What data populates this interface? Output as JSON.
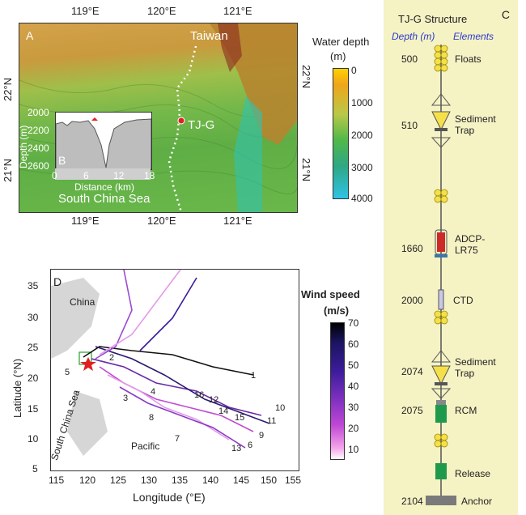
{
  "panel_a": {
    "label": "A",
    "top_ticks": [
      "119°E",
      "120°E",
      "121°E"
    ],
    "bottom_ticks": [
      "119°E",
      "120°E",
      "121°E"
    ],
    "left_ticks": [
      "22°N",
      "21°N"
    ],
    "right_ticks": [
      "22°N",
      "21°N"
    ],
    "place_taiwan": "Taiwan",
    "place_scs": "South China Sea",
    "station": "TJ-G",
    "colorbar_title": "Water depth",
    "colorbar_unit": "(m)",
    "colorbar_ticks": [
      "0",
      "1000",
      "2000",
      "3000",
      "4000"
    ]
  },
  "panel_b": {
    "label": "B",
    "ylabel": "Depth (m)",
    "xlabel": "Distance (km)",
    "y_ticks": [
      "2000",
      "2200",
      "2400",
      "2600"
    ],
    "x_ticks": [
      "0",
      "6",
      "12",
      "18"
    ]
  },
  "panel_c": {
    "label": "C",
    "title": "TJ-G Structure",
    "col_depth": "Depth (m)",
    "col_elements": "Elements",
    "rows": [
      {
        "depth": "500",
        "element": "Floats"
      },
      {
        "depth": "510",
        "element": "Sediment\nTrap"
      },
      {
        "depth": "1660",
        "element": "ADCP-\nLR75"
      },
      {
        "depth": "2000",
        "element": "CTD"
      },
      {
        "depth": "2074",
        "element": "Sediment\nTrap"
      },
      {
        "depth": "2075",
        "element": "RCM"
      },
      {
        "depth": "",
        "element": "Release"
      },
      {
        "depth": "2104",
        "element": "Anchor"
      }
    ],
    "colors": {
      "float": "#f6e04a",
      "trap": "#f6e04a",
      "adcp": "#cc2a2a",
      "rcm": "#1f9a4c",
      "release": "#1f9a4c",
      "anchor": "#7a7a7a"
    }
  },
  "panel_d": {
    "label": "D",
    "xlabel": "Longitude (°E)",
    "ylabel": "Latitude (°N)",
    "x_ticks": [
      "115",
      "120",
      "125",
      "130",
      "135",
      "140",
      "145",
      "150",
      "155"
    ],
    "y_ticks": [
      "5",
      "10",
      "15",
      "20",
      "25",
      "30",
      "35"
    ],
    "place_china": "China",
    "place_scs": "South China Sea",
    "place_pacific": "Pacific",
    "track_numbers": [
      "1",
      "2",
      "3",
      "4",
      "5",
      "6",
      "7",
      "8",
      "9",
      "10",
      "11",
      "12",
      "13",
      "14",
      "15",
      "16"
    ],
    "colorbar_title": "Wind speed",
    "colorbar_unit": "(m/s)",
    "colorbar_ticks": [
      "70",
      "60",
      "50",
      "40",
      "30",
      "20",
      "10"
    ]
  }
}
